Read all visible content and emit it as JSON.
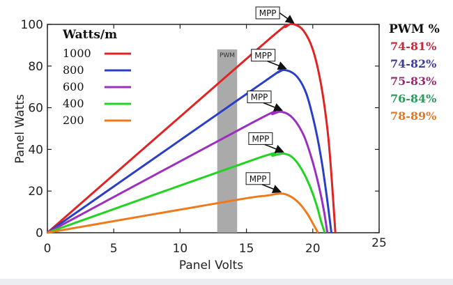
{
  "chart_data": {
    "type": "line",
    "xlabel": "Panel Volts",
    "ylabel": "Panel Watts",
    "xlim": [
      0,
      25
    ],
    "ylim": [
      0,
      100
    ],
    "x_ticks": [
      "0",
      "5",
      "10",
      "15",
      "20",
      "25"
    ],
    "y_ticks": [
      "0",
      "20",
      "40",
      "60",
      "80",
      "100"
    ],
    "legend_title": "Watts/m",
    "series": [
      {
        "name": "1000",
        "color": "#e02424",
        "points": [
          [
            0,
            0
          ],
          [
            16,
            89
          ],
          [
            18,
            99
          ],
          [
            18.6,
            100
          ],
          [
            19.3,
            97
          ],
          [
            20,
            88
          ],
          [
            20.6,
            72
          ],
          [
            21.1,
            50
          ],
          [
            21.4,
            28
          ],
          [
            21.7,
            0
          ]
        ]
      },
      {
        "name": "800",
        "color": "#2a3fc8",
        "points": [
          [
            0,
            0
          ],
          [
            16,
            71
          ],
          [
            17.4,
            77
          ],
          [
            18,
            78
          ],
          [
            18.8,
            75
          ],
          [
            19.5,
            67
          ],
          [
            20.1,
            53
          ],
          [
            20.6,
            37
          ],
          [
            21,
            20
          ],
          [
            21.4,
            0
          ]
        ]
      },
      {
        "name": "600",
        "color": "#9b2fc0",
        "points": [
          [
            0,
            0
          ],
          [
            15.5,
            53
          ],
          [
            17,
            57
          ],
          [
            17.7,
            58
          ],
          [
            18.5,
            55
          ],
          [
            19.3,
            47
          ],
          [
            19.9,
            36
          ],
          [
            20.4,
            24
          ],
          [
            20.8,
            12
          ],
          [
            21.1,
            0
          ]
        ]
      },
      {
        "name": "400",
        "color": "#22d422",
        "points": [
          [
            0,
            0
          ],
          [
            15.5,
            35
          ],
          [
            17,
            37
          ],
          [
            17.8,
            38
          ],
          [
            18.5,
            36
          ],
          [
            19.2,
            30
          ],
          [
            19.8,
            22
          ],
          [
            20.3,
            13
          ],
          [
            20.6,
            6
          ],
          [
            20.9,
            0
          ]
        ]
      },
      {
        "name": "200",
        "color": "#f07a1a",
        "points": [
          [
            0,
            0
          ],
          [
            14,
            15.5
          ],
          [
            16.5,
            17.8
          ],
          [
            17.6,
            18.8
          ],
          [
            18.3,
            17.5
          ],
          [
            19,
            14
          ],
          [
            19.6,
            9
          ],
          [
            20,
            4.5
          ],
          [
            20.4,
            0
          ]
        ]
      }
    ],
    "mpp_label": "MPP",
    "mpp_points": [
      [
        18.6,
        100
      ],
      [
        18,
        78
      ],
      [
        17.7,
        58
      ],
      [
        17.8,
        38
      ],
      [
        17.6,
        18.8
      ]
    ],
    "pwm_band": {
      "label": "PWM",
      "x_range": [
        12.8,
        14.3
      ],
      "y_max": 88
    }
  },
  "pwm_legend": {
    "title": "PWM %",
    "items": [
      {
        "label": "74-81%",
        "color": "#c8283a"
      },
      {
        "label": "74-82%",
        "color": "#3d3d9e"
      },
      {
        "label": "75-83%",
        "color": "#9c2a6e"
      },
      {
        "label": "76-84%",
        "color": "#2a9a5a"
      },
      {
        "label": "78-89%",
        "color": "#e07a2a"
      }
    ]
  }
}
